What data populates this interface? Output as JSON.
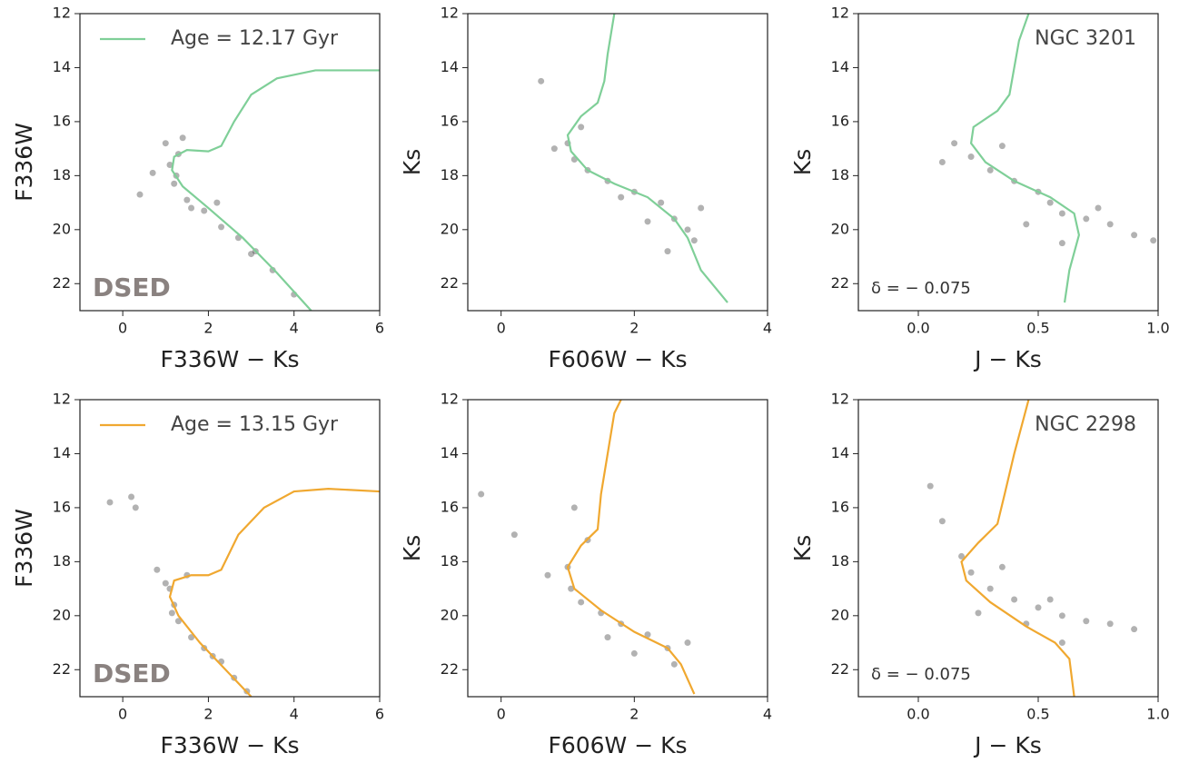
{
  "chart_data": [
    {
      "type": "scatter",
      "xlabel": "F336W − Ks",
      "ylabel": "F336W",
      "xlim": [
        -1,
        6
      ],
      "ylim": [
        23,
        12
      ],
      "xticks": [
        0,
        2,
        4,
        6
      ],
      "yticks": [
        12,
        14,
        16,
        18,
        20,
        22
      ],
      "legend": "upper left",
      "annotations": [
        {
          "text": "DSED",
          "corner": "lower left",
          "bold": true
        }
      ],
      "series": [
        {
          "type": "scatter",
          "color": "#000000",
          "x": [
            1.1,
            1.3,
            1.2,
            1.5,
            1.9,
            2.3,
            2.7,
            3.1,
            3.5,
            4.0,
            1.0,
            1.4,
            0.7,
            1.6,
            2.2,
            0.4,
            3.0,
            1.25
          ],
          "y": [
            17.6,
            17.2,
            18.3,
            18.9,
            19.3,
            19.9,
            20.3,
            20.8,
            21.5,
            22.4,
            16.8,
            16.6,
            17.9,
            19.2,
            19.0,
            18.7,
            20.9,
            18.0
          ]
        },
        {
          "type": "line",
          "name": "Age = 12.17 Gyr",
          "color": "#7fcf98",
          "x": [
            4.4,
            3.6,
            2.8,
            2.0,
            1.4,
            1.15,
            1.2,
            1.5,
            2.0,
            2.3,
            2.6,
            3.0,
            3.6,
            4.5,
            6
          ],
          "y": [
            23,
            21.6,
            20.3,
            19.2,
            18.4,
            17.8,
            17.3,
            17.05,
            17.1,
            16.9,
            16.0,
            15.0,
            14.4,
            14.1,
            14.1
          ]
        }
      ]
    },
    {
      "type": "scatter",
      "xlabel": "F606W − Ks",
      "ylabel": "Ks",
      "xlim": [
        -0.5,
        4
      ],
      "ylim": [
        23,
        12
      ],
      "xticks": [
        0,
        2,
        4
      ],
      "yticks": [
        12,
        14,
        16,
        18,
        20,
        22
      ],
      "series": [
        {
          "type": "scatter",
          "color": "#000000",
          "x": [
            1.0,
            1.1,
            1.3,
            1.6,
            2.0,
            2.4,
            2.6,
            2.8,
            2.9,
            2.5,
            1.2,
            0.8,
            1.8,
            2.2,
            3.0,
            0.6
          ],
          "y": [
            16.8,
            17.4,
            17.8,
            18.2,
            18.6,
            19.0,
            19.6,
            20.0,
            20.4,
            20.8,
            16.2,
            17.0,
            18.8,
            19.7,
            19.2,
            14.5
          ]
        },
        {
          "type": "line",
          "color": "#7fcf98",
          "x": [
            3.4,
            3.0,
            2.8,
            2.6,
            2.2,
            1.7,
            1.3,
            1.05,
            1.0,
            1.2,
            1.45,
            1.55,
            1.6,
            1.7
          ],
          "y": [
            22.7,
            21.5,
            20.3,
            19.6,
            18.8,
            18.3,
            17.8,
            17.1,
            16.5,
            15.8,
            15.3,
            14.5,
            13.5,
            12
          ]
        }
      ]
    },
    {
      "type": "scatter",
      "xlabel": "J − Ks",
      "ylabel": "Ks",
      "xlim": [
        -0.25,
        1.0
      ],
      "ylim": [
        23,
        12
      ],
      "xticks": [
        {
          "value": 0,
          "label": "0.0"
        },
        0.5,
        {
          "value": 1,
          "label": "1.0"
        }
      ],
      "yticks": [
        12,
        14,
        16,
        18,
        20,
        22
      ],
      "annotations": [
        {
          "text": "NGC 3201",
          "corner": "upper right"
        },
        {
          "text": "δ = − 0.075",
          "corner": "lower left"
        }
      ],
      "series": [
        {
          "type": "scatter",
          "color": "#000000",
          "x": [
            0.15,
            0.22,
            0.3,
            0.4,
            0.5,
            0.55,
            0.6,
            0.7,
            0.8,
            0.9,
            0.45,
            0.35,
            0.1,
            0.6,
            0.75,
            0.98
          ],
          "y": [
            16.8,
            17.3,
            17.8,
            18.2,
            18.6,
            19.0,
            19.4,
            19.6,
            19.8,
            20.2,
            19.8,
            16.9,
            17.5,
            20.5,
            19.2,
            20.4
          ]
        },
        {
          "type": "line",
          "color": "#7fcf98",
          "x": [
            0.61,
            0.63,
            0.67,
            0.65,
            0.55,
            0.4,
            0.28,
            0.22,
            0.23,
            0.33,
            0.38,
            0.4,
            0.42,
            0.46
          ],
          "y": [
            22.7,
            21.5,
            20.2,
            19.4,
            18.8,
            18.2,
            17.5,
            16.8,
            16.2,
            15.6,
            15.0,
            14.0,
            13.0,
            12
          ]
        }
      ]
    },
    {
      "type": "scatter",
      "xlabel": "F336W − Ks",
      "ylabel": "F336W",
      "xlim": [
        -1,
        6
      ],
      "ylim": [
        23,
        12
      ],
      "xticks": [
        0,
        2,
        4,
        6
      ],
      "yticks": [
        12,
        14,
        16,
        18,
        20,
        22
      ],
      "legend": "upper left",
      "annotations": [
        {
          "text": "DSED",
          "corner": "lower left",
          "bold": true
        }
      ],
      "series": [
        {
          "type": "scatter",
          "color": "#000000",
          "x": [
            1.1,
            1.2,
            1.3,
            1.6,
            1.9,
            2.3,
            2.6,
            2.9,
            1.0,
            0.3,
            -0.3,
            0.2,
            1.5,
            2.1,
            1.15,
            0.8
          ],
          "y": [
            19.0,
            19.6,
            20.2,
            20.8,
            21.2,
            21.7,
            22.3,
            22.8,
            18.8,
            16.0,
            15.8,
            15.6,
            18.5,
            21.5,
            19.9,
            18.3
          ]
        },
        {
          "type": "line",
          "name": "Age = 13.15 Gyr",
          "color": "#f0a830",
          "x": [
            3.0,
            2.4,
            1.8,
            1.3,
            1.1,
            1.2,
            1.6,
            2.0,
            2.3,
            2.7,
            3.3,
            4.0,
            4.8,
            6
          ],
          "y": [
            23,
            22,
            21,
            20,
            19.3,
            18.7,
            18.5,
            18.5,
            18.3,
            17.0,
            16.0,
            15.4,
            15.3,
            15.4
          ]
        }
      ]
    },
    {
      "type": "scatter",
      "xlabel": "F606W − Ks",
      "ylabel": "Ks",
      "xlim": [
        -0.5,
        4
      ],
      "ylim": [
        23,
        12
      ],
      "xticks": [
        0,
        2,
        4
      ],
      "yticks": [
        12,
        14,
        16,
        18,
        20,
        22
      ],
      "series": [
        {
          "type": "scatter",
          "color": "#000000",
          "x": [
            1.0,
            1.05,
            1.2,
            1.5,
            1.8,
            2.2,
            2.5,
            2.6,
            1.3,
            0.7,
            0.2,
            -0.3,
            2.0,
            2.8,
            1.6,
            1.1
          ],
          "y": [
            18.2,
            19.0,
            19.5,
            19.9,
            20.3,
            20.7,
            21.2,
            21.8,
            17.2,
            18.5,
            17.0,
            15.5,
            21.4,
            21.0,
            20.8,
            16.0
          ]
        },
        {
          "type": "line",
          "color": "#f0a830",
          "x": [
            2.9,
            2.7,
            2.5,
            2.0,
            1.5,
            1.1,
            1.0,
            1.2,
            1.45,
            1.5,
            1.6,
            1.7,
            1.8
          ],
          "y": [
            22.9,
            21.8,
            21.2,
            20.6,
            19.8,
            19.0,
            18.2,
            17.4,
            16.8,
            15.5,
            14.0,
            12.5,
            12
          ]
        }
      ]
    },
    {
      "type": "scatter",
      "xlabel": "J − Ks",
      "ylabel": "Ks",
      "xlim": [
        -0.25,
        1.0
      ],
      "ylim": [
        23,
        12
      ],
      "xticks": [
        {
          "value": 0,
          "label": "0.0"
        },
        0.5,
        {
          "value": 1,
          "label": "1.0"
        }
      ],
      "yticks": [
        12,
        14,
        16,
        18,
        20,
        22
      ],
      "annotations": [
        {
          "text": "NGC 2298",
          "corner": "upper right"
        },
        {
          "text": "δ = − 0.075",
          "corner": "lower left"
        }
      ],
      "series": [
        {
          "type": "scatter",
          "color": "#000000",
          "x": [
            0.18,
            0.22,
            0.3,
            0.4,
            0.5,
            0.6,
            0.7,
            0.8,
            0.9,
            0.35,
            0.1,
            0.05,
            0.45,
            0.6,
            0.55,
            0.25
          ],
          "y": [
            17.8,
            18.4,
            19.0,
            19.4,
            19.7,
            20.0,
            20.2,
            20.3,
            20.5,
            18.2,
            16.5,
            15.2,
            20.3,
            21.0,
            19.4,
            19.9
          ]
        },
        {
          "type": "line",
          "color": "#f0a830",
          "x": [
            0.65,
            0.63,
            0.57,
            0.45,
            0.3,
            0.2,
            0.18,
            0.25,
            0.33,
            0.36,
            0.4,
            0.46
          ],
          "y": [
            23,
            21.6,
            21.0,
            20.4,
            19.5,
            18.7,
            18.0,
            17.3,
            16.6,
            15.5,
            14.0,
            12
          ]
        }
      ]
    }
  ]
}
